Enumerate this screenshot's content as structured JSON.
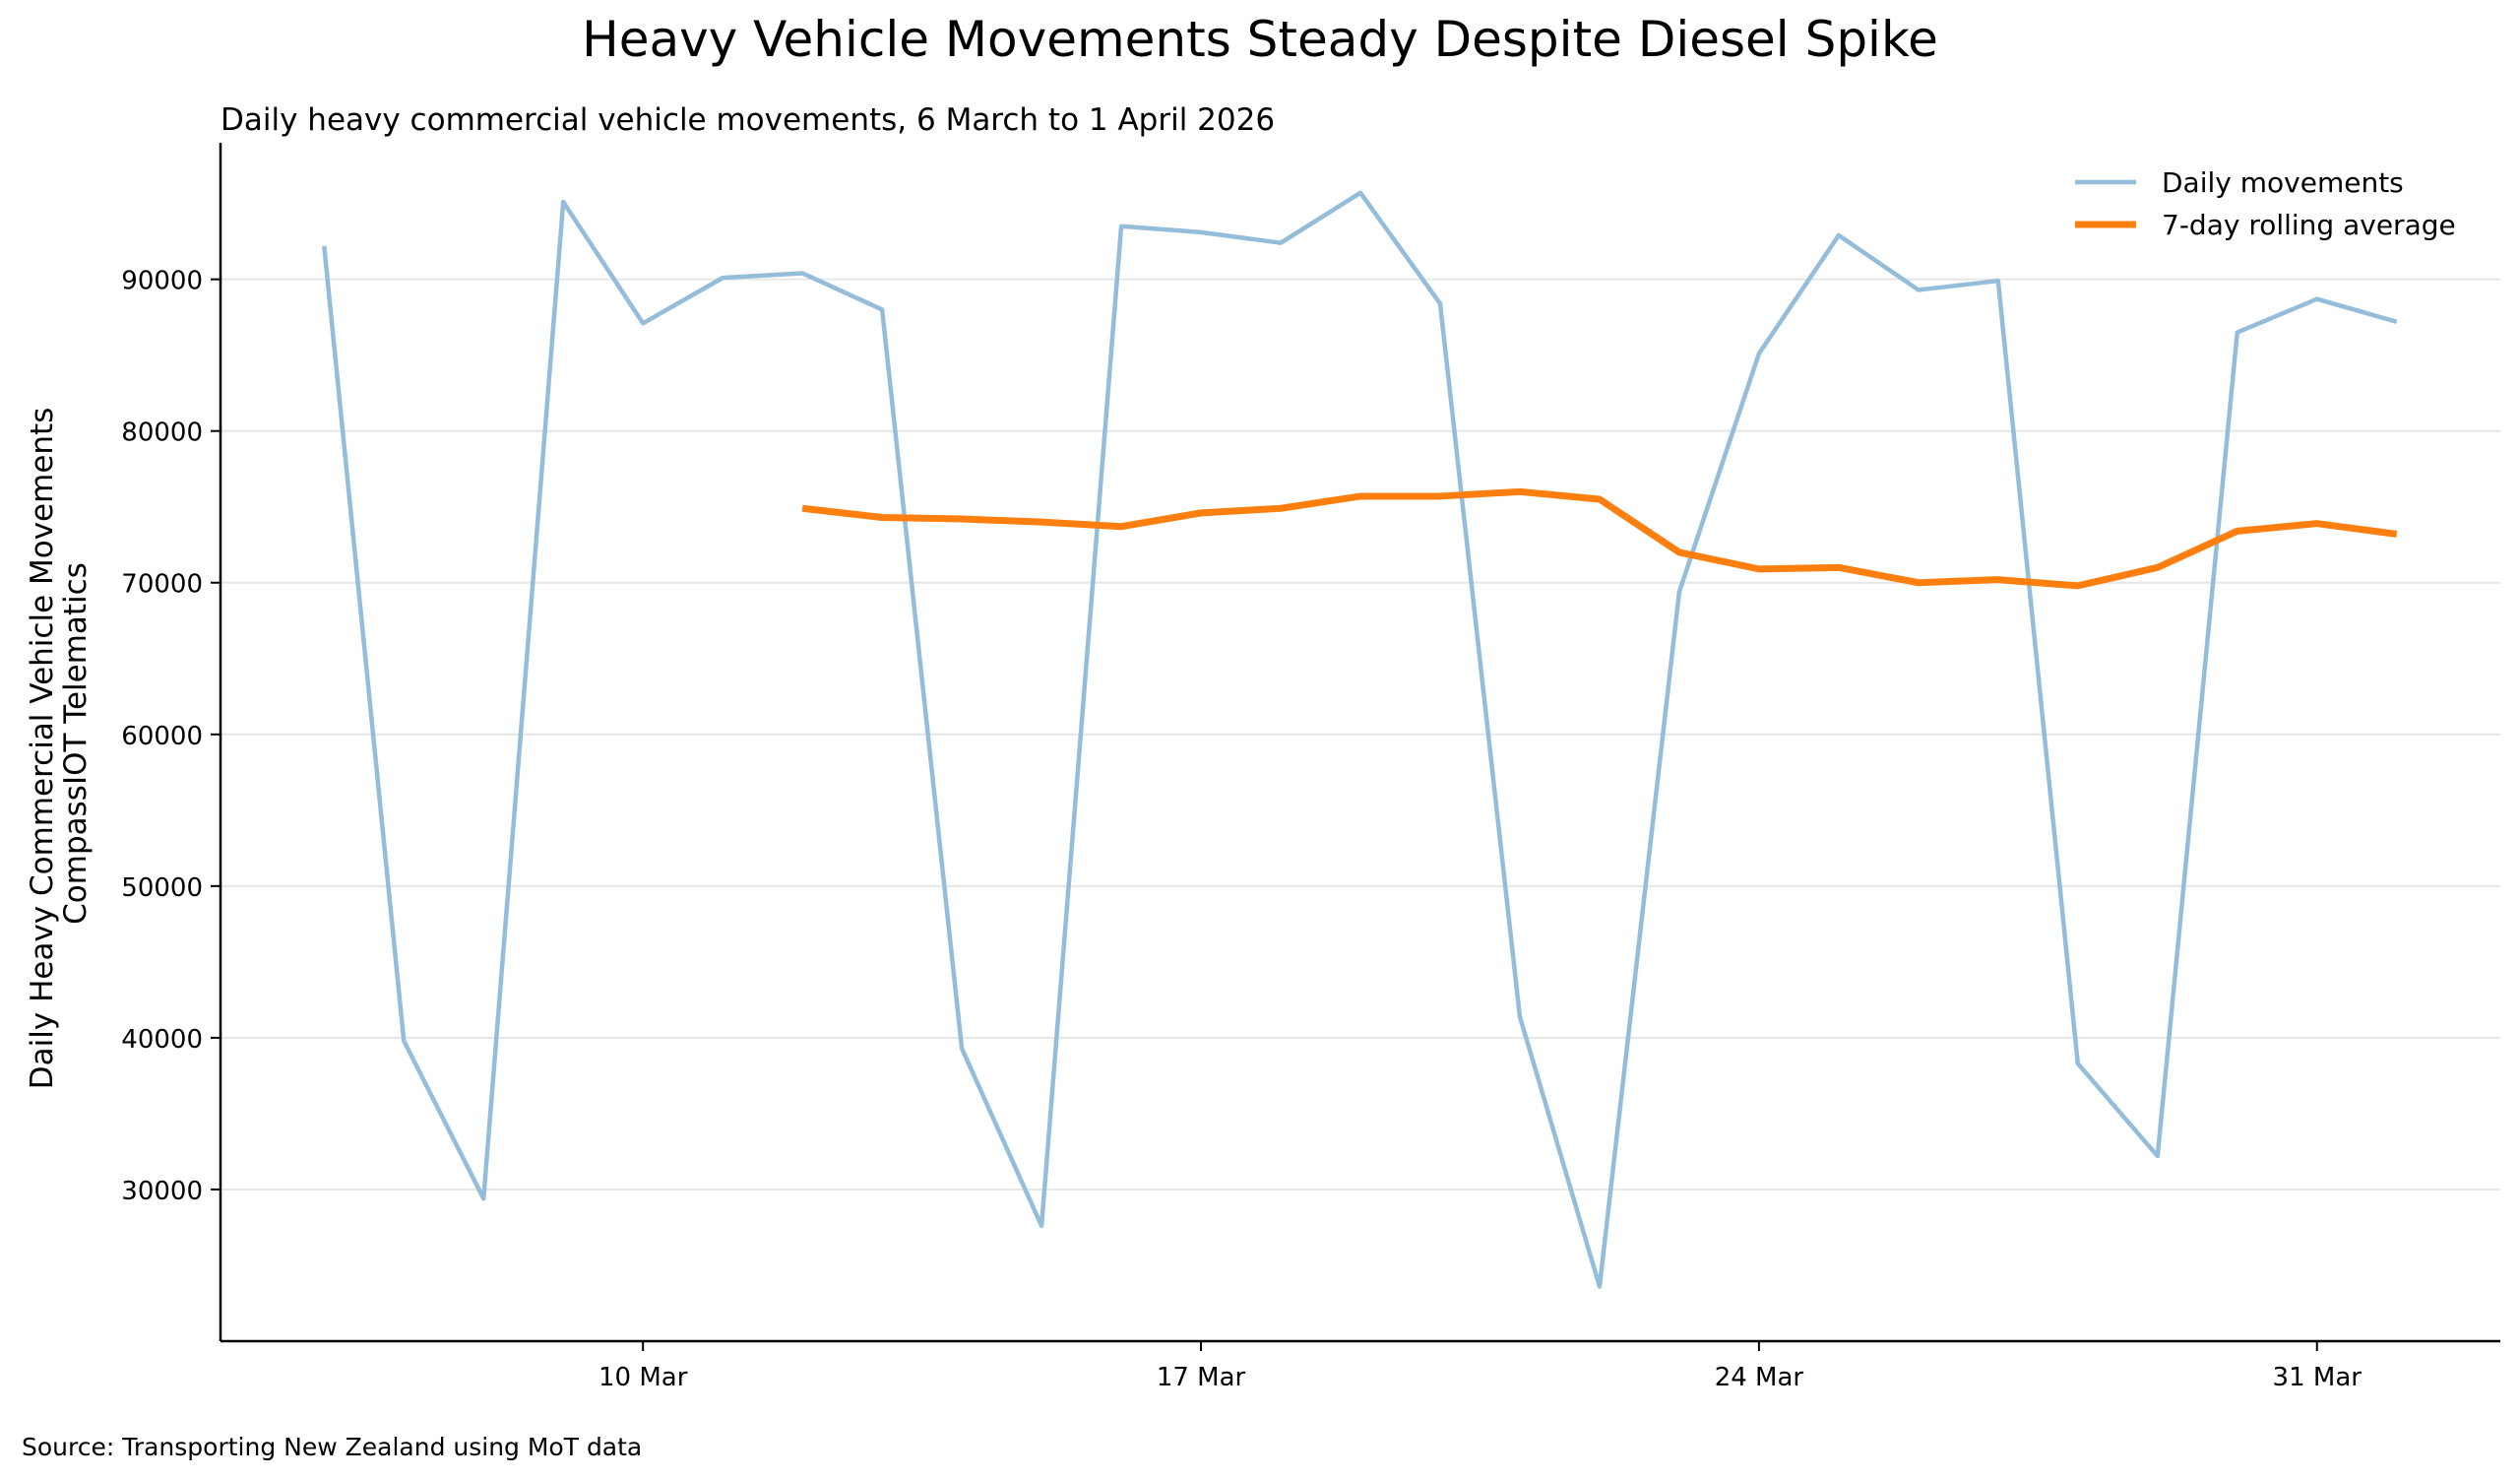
{
  "chart_data": {
    "type": "line",
    "title": "Heavy Vehicle Movements Steady Despite Diesel Spike",
    "subtitle": "Daily heavy commercial vehicle movements, 6 March to 1 April 2026",
    "ylabel_lines": [
      "Daily Heavy Commercial Vehicle Movements",
      "CompassIOT Telematics"
    ],
    "xlabel": "",
    "source": "Source: Transporting New Zealand using MoT data",
    "x_start_date": "2026-03-06",
    "x_range_days": [
      -1.3,
      27.3
    ],
    "x_ticks": [
      {
        "day": 4,
        "label": "10 Mar"
      },
      {
        "day": 11,
        "label": "17 Mar"
      },
      {
        "day": 18,
        "label": "24 Mar"
      },
      {
        "day": 25,
        "label": "31 Mar"
      }
    ],
    "ylim": [
      20000,
      99000
    ],
    "y_ticks": [
      30000,
      40000,
      50000,
      60000,
      70000,
      80000,
      90000
    ],
    "grid": "horizontal",
    "legend_position": "top-right",
    "series": [
      {
        "name": "Daily movements",
        "color": "#94bcdb",
        "style": "thin",
        "start_day": 0,
        "values": [
          92200,
          39800,
          29400,
          95100,
          87100,
          90100,
          90400,
          88000,
          39300,
          27600,
          93500,
          93100,
          92400,
          95700,
          88400,
          41400,
          23600,
          69400,
          85100,
          92900,
          89300,
          89900,
          38300,
          32200,
          86500,
          88700,
          87200
        ]
      },
      {
        "name": "7-day rolling average",
        "color": "#ff7f0e",
        "style": "thick",
        "start_day": 6,
        "values": [
          74900,
          74300,
          74200,
          74000,
          73700,
          74600,
          74900,
          75700,
          75700,
          76000,
          75500,
          72000,
          70900,
          71000,
          70000,
          70200,
          69800,
          71000,
          73400,
          73900,
          73200
        ]
      }
    ]
  }
}
